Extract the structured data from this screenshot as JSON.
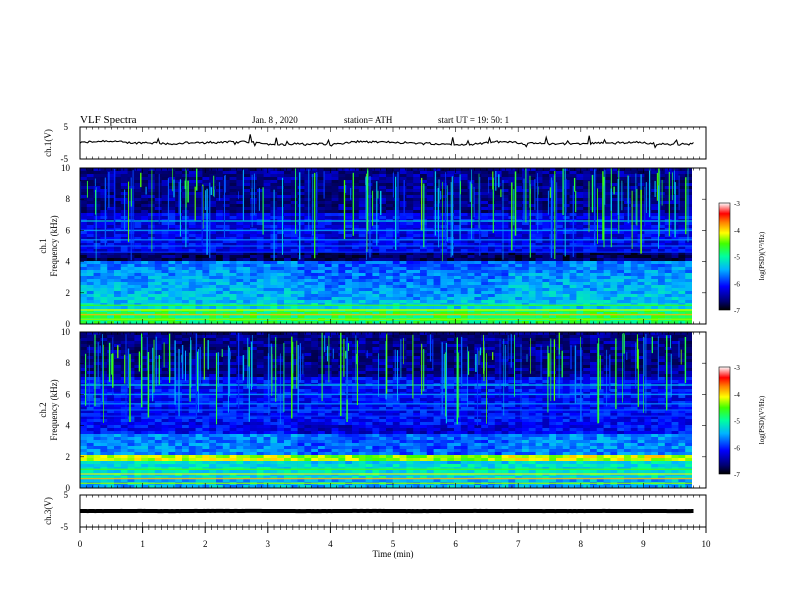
{
  "header": {
    "title": "VLF  Spectra",
    "date": "Jan. 8  , 2020",
    "station": "station= ATH",
    "start": "start  UT  =    19: 50: 1"
  },
  "chart_data": [
    {
      "type": "line",
      "panel": "ch1-waveform",
      "ylabel": "ch.1(V)",
      "ylim": [
        -5,
        5
      ],
      "yticks": [
        "5",
        "-5"
      ],
      "baseline_value": 0,
      "color": "#000000"
    },
    {
      "type": "heatmap",
      "panel": "ch1-spectrogram",
      "ylabel": "ch.1\nFrequency (kHz)",
      "ylabel_line1": "ch.1",
      "ylabel_line2": "Frequency  (kHz)",
      "ylim": [
        0,
        10
      ],
      "yticks": [
        "0",
        "2",
        "4",
        "6",
        "8",
        "10"
      ],
      "colorbar": {
        "label": "log(PSD)(V²/Hz)",
        "range": [
          -7,
          -3
        ],
        "ticks": [
          "-3",
          "-4",
          "-5",
          "-6",
          "-7"
        ]
      }
    },
    {
      "type": "heatmap",
      "panel": "ch2-spectrogram",
      "ylabel_line1": "ch.2",
      "ylabel_line2": "Frequency  (kHz)",
      "ylim": [
        0,
        10
      ],
      "yticks": [
        "0",
        "2",
        "4",
        "6",
        "8",
        "10"
      ],
      "colorbar": {
        "label": "log(PSD)(V²/Hz)",
        "range": [
          -7,
          -3
        ],
        "ticks": [
          "-3",
          "-4",
          "-5",
          "-6",
          "-7"
        ]
      }
    },
    {
      "type": "line",
      "panel": "ch3-waveform",
      "ylabel": "ch.3(V)",
      "ylim": [
        -5,
        5
      ],
      "yticks": [
        "5",
        "-5"
      ],
      "baseline_value": 0,
      "color": "#000000"
    }
  ],
  "xaxis": {
    "label": "Time  (min)",
    "range": [
      0,
      10
    ],
    "ticks": [
      "0",
      "1",
      "2",
      "3",
      "4",
      "5",
      "6",
      "7",
      "8",
      "9",
      "10"
    ]
  },
  "colors": {
    "ink": "#000000",
    "background": "#ffffff",
    "spectrogram_base": "#0a1c6e"
  }
}
